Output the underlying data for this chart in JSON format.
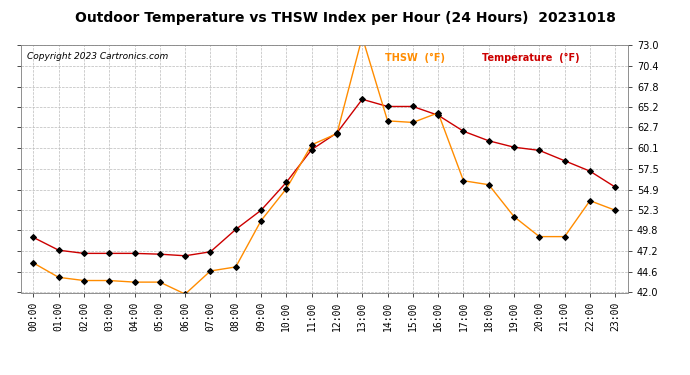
{
  "title": "Outdoor Temperature vs THSW Index per Hour (24 Hours)  20231018",
  "copyright": "Copyright 2023 Cartronics.com",
  "legend_thsw": "THSW  (°F)",
  "legend_temp": "Temperature  (°F)",
  "hours": [
    0,
    1,
    2,
    3,
    4,
    5,
    6,
    7,
    8,
    9,
    10,
    11,
    12,
    13,
    14,
    15,
    16,
    17,
    18,
    19,
    20,
    21,
    22,
    23
  ],
  "temperature": [
    48.9,
    47.3,
    46.9,
    46.9,
    46.9,
    46.8,
    46.6,
    47.1,
    49.9,
    52.3,
    55.8,
    59.9,
    62.0,
    66.2,
    65.3,
    65.3,
    64.2,
    62.2,
    61.0,
    60.2,
    59.8,
    58.5,
    57.2,
    55.2
  ],
  "thsw": [
    45.7,
    43.9,
    43.5,
    43.5,
    43.3,
    43.3,
    41.8,
    44.7,
    45.2,
    51.0,
    55.0,
    60.5,
    61.9,
    74.0,
    63.5,
    63.3,
    64.5,
    56.0,
    55.5,
    51.5,
    49.0,
    49.0,
    53.5,
    52.3
  ],
  "temp_color": "#cc0000",
  "thsw_color": "#ff8c00",
  "marker_color": "#000000",
  "ylim": [
    42.0,
    73.0
  ],
  "yticks": [
    42.0,
    44.6,
    47.2,
    49.8,
    52.3,
    54.9,
    57.5,
    60.1,
    62.7,
    65.2,
    67.8,
    70.4,
    73.0
  ],
  "background_color": "#ffffff",
  "grid_color": "#bbbbbb",
  "title_fontsize": 10,
  "copyright_fontsize": 6.5,
  "legend_fontsize": 7,
  "tick_fontsize": 7
}
